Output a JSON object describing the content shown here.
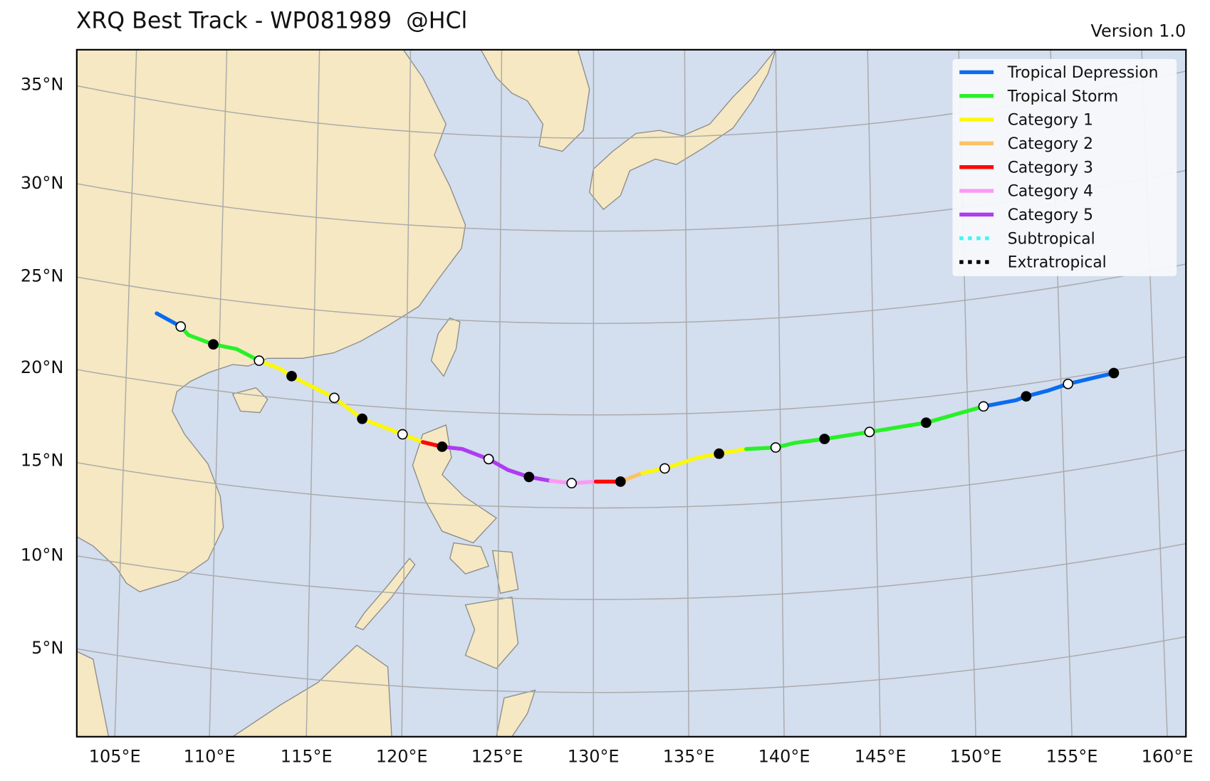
{
  "header": {
    "title": "XRQ Best Track - WP081989  @HCl",
    "version": "Version 1.0"
  },
  "legend": [
    {
      "label": "Tropical Depression",
      "color": "#0a6bf0",
      "style": "solid"
    },
    {
      "label": "Tropical Storm",
      "color": "#29f029",
      "style": "solid"
    },
    {
      "label": "Category 1",
      "color": "#fbf80a",
      "style": "solid"
    },
    {
      "label": "Category 2",
      "color": "#fbc266",
      "style": "solid"
    },
    {
      "label": "Category 3",
      "color": "#fb0a0a",
      "style": "solid"
    },
    {
      "label": "Category 4",
      "color": "#fb9af5",
      "style": "solid"
    },
    {
      "label": "Category 5",
      "color": "#ae3cf0",
      "style": "solid"
    },
    {
      "label": "Subtropical",
      "color": "#3ef7f7",
      "style": "dotted"
    },
    {
      "label": "Extratropical",
      "color": "#000000",
      "style": "dotted"
    }
  ],
  "lat_labels": [
    "35°N",
    "30°N",
    "25°N",
    "20°N",
    "15°N",
    "10°N",
    "5°N"
  ],
  "lon_labels": [
    "105°E",
    "110°E",
    "115°E",
    "120°E",
    "125°E",
    "130°E",
    "135°E",
    "140°E",
    "145°E",
    "150°E",
    "155°E",
    "160°E"
  ]
}
